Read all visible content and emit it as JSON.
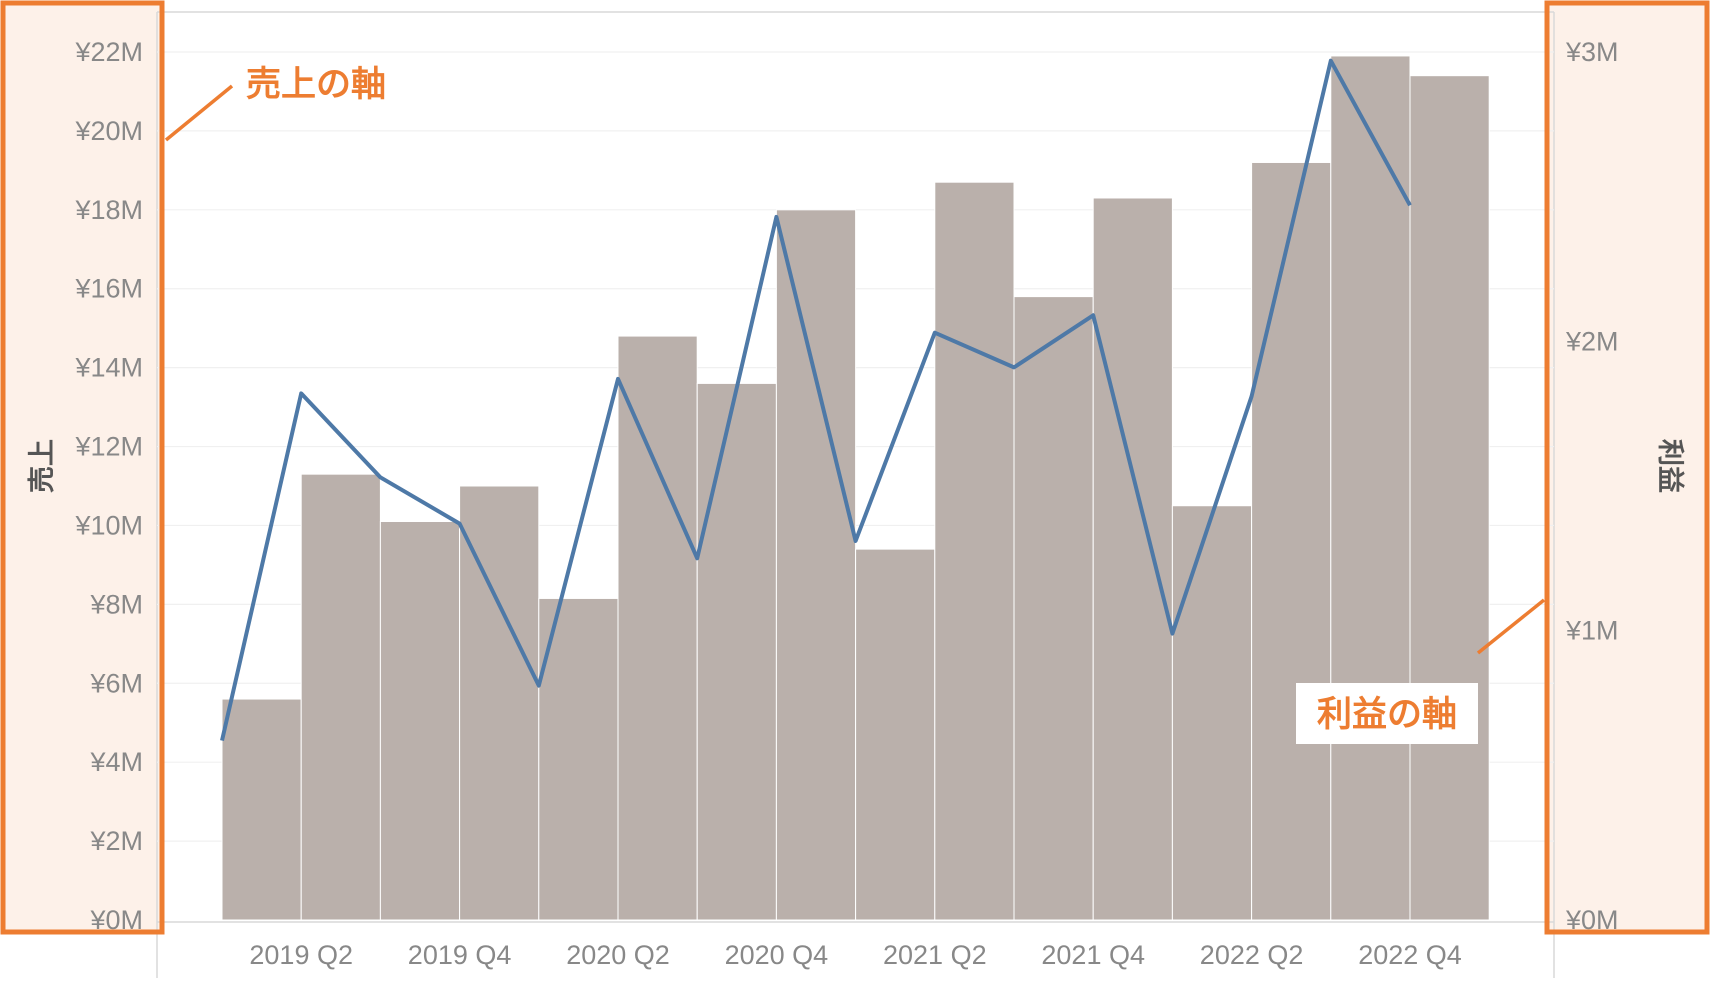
{
  "chart_data": {
    "type": "bar",
    "categories": [
      "2019 Q1",
      "2019 Q2",
      "2019 Q3",
      "2019 Q4",
      "2020 Q1",
      "2020 Q2",
      "2020 Q3",
      "2020 Q4",
      "2021 Q1",
      "2021 Q2",
      "2021 Q3",
      "2021 Q4",
      "2022 Q1",
      "2022 Q2",
      "2022 Q3",
      "2022 Q4"
    ],
    "x_tick_labels": [
      "2019 Q2",
      "2019 Q4",
      "2020 Q2",
      "2020 Q4",
      "2021 Q2",
      "2021 Q4",
      "2022 Q2",
      "2022 Q4"
    ],
    "series": [
      {
        "name": "売上",
        "kind": "bar",
        "axis": "left",
        "values": [
          5.6,
          11.3,
          10.1,
          11.0,
          8.15,
          14.8,
          13.6,
          18.0,
          9.4,
          18.7,
          15.8,
          18.3,
          10.5,
          19.2,
          21.9,
          21.4
        ]
      },
      {
        "name": "利益",
        "kind": "line",
        "axis": "right",
        "values": [
          0.62,
          1.82,
          1.53,
          1.37,
          0.81,
          1.87,
          1.25,
          2.43,
          1.31,
          2.03,
          1.91,
          2.09,
          0.99,
          1.81,
          2.97,
          2.47
        ]
      }
    ],
    "ylabel": "売上",
    "ylabel_right": "利益",
    "ylim": [
      0,
      22
    ],
    "ylim_right": [
      0,
      3
    ],
    "y_ticks": [
      "¥0M",
      "¥2M",
      "¥4M",
      "¥6M",
      "¥8M",
      "¥10M",
      "¥12M",
      "¥14M",
      "¥16M",
      "¥18M",
      "¥20M",
      "¥22M"
    ],
    "y_ticks_right": [
      "¥0M",
      "¥1M",
      "¥2M",
      "¥3M"
    ],
    "grid": true,
    "colors": {
      "bar": "#bab0ab",
      "line": "#4e79a7",
      "highlight": "#ed7d31",
      "highlight_fill": "#fdf1e9"
    },
    "annotations": [
      {
        "name": "left-axis-callout",
        "text": "売上の軸"
      },
      {
        "name": "right-axis-callout",
        "text": "利益の軸"
      }
    ]
  }
}
